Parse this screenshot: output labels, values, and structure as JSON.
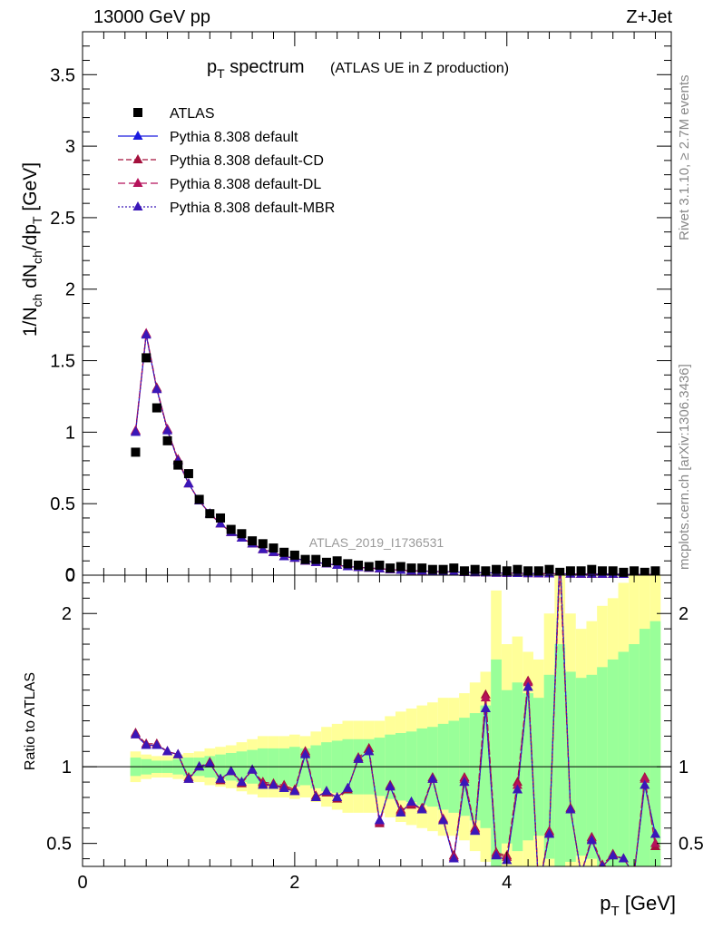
{
  "header": {
    "left": "13000 GeV pp",
    "right": "Z+Jet"
  },
  "side_labels": {
    "rivet": "Rivet 3.1.10, ≥ 2.7M events",
    "mcplots": "mcplots.cern.ch [arXiv:1306.3436]"
  },
  "chart_data": [
    {
      "type": "scatter",
      "title_main": "p",
      "title_sub": "T",
      "title_rest": " spectrum",
      "title_suffix": "(ATLAS UE in Z production)",
      "watermark": "ATLAS_2019_I1736531",
      "ylabel_parts": [
        "1/N",
        "ch",
        " dN",
        "ch",
        "/dp",
        "T",
        " [GeV]"
      ],
      "ylim": [
        0,
        3.8
      ],
      "yticks": [
        0,
        0.5,
        1,
        1.5,
        2,
        2.5,
        3,
        3.5
      ],
      "ytick_labels": [
        "0",
        "0.5",
        "1",
        "1.5",
        "2",
        "2.5",
        "3",
        "3.5"
      ],
      "x": [
        0.5,
        0.6,
        0.7,
        0.8,
        0.9,
        1.0,
        1.1,
        1.2,
        1.3,
        1.4,
        1.5,
        1.6,
        1.7,
        1.8,
        1.9,
        2.0,
        2.1,
        2.2,
        2.3,
        2.4,
        2.5,
        2.6,
        2.7,
        2.8,
        2.9,
        3.0,
        3.1,
        3.2,
        3.3,
        3.4,
        3.5,
        3.6,
        3.7,
        3.8,
        3.9,
        4.0,
        4.1,
        4.2,
        4.3,
        4.4,
        4.5,
        4.6,
        4.7,
        4.8,
        4.9,
        5.0,
        5.1,
        5.2,
        5.3,
        5.4
      ],
      "series": [
        {
          "name": "ATLAS",
          "values": [
            0.86,
            1.52,
            1.17,
            0.94,
            0.77,
            0.71,
            0.53,
            0.43,
            0.4,
            0.32,
            0.29,
            0.24,
            0.22,
            0.19,
            0.16,
            0.14,
            0.11,
            0.11,
            0.09,
            0.1,
            0.08,
            0.07,
            0.06,
            0.07,
            0.05,
            0.06,
            0.05,
            0.05,
            0.04,
            0.04,
            0.05,
            0.03,
            0.04,
            0.03,
            0.04,
            0.03,
            0.04,
            0.03,
            0.03,
            0.04,
            0.02,
            0.03,
            0.03,
            0.04,
            0.03,
            0.03,
            0.02,
            0.03,
            0.02,
            0.03
          ]
        },
        {
          "name": "Pythia 8.308 default",
          "values": [
            1.0,
            1.68,
            1.3,
            1.02,
            0.8,
            0.64,
            0.52,
            0.43,
            0.36,
            0.3,
            0.26,
            0.22,
            0.18,
            0.16,
            0.13,
            0.12,
            0.1,
            0.09,
            0.08,
            0.07,
            0.06,
            0.055,
            0.05,
            0.045,
            0.04,
            0.035,
            0.03,
            0.03,
            0.026,
            0.024,
            0.022,
            0.02,
            0.018,
            0.017,
            0.015,
            0.014,
            0.013,
            0.012,
            0.011,
            0.01,
            0.01,
            0.009,
            0.008,
            0.008,
            0.007,
            0.007,
            0.006,
            0.006,
            0.005,
            0.005
          ]
        },
        {
          "name": "Pythia 8.308 default-CD",
          "values": [
            1.01,
            1.69,
            1.31,
            1.02,
            0.81,
            0.64,
            0.52,
            0.43,
            0.36,
            0.3,
            0.26,
            0.22,
            0.18,
            0.16,
            0.13,
            0.12,
            0.1,
            0.09,
            0.08,
            0.07,
            0.06,
            0.055,
            0.05,
            0.045,
            0.04,
            0.035,
            0.03,
            0.03,
            0.026,
            0.024,
            0.022,
            0.02,
            0.018,
            0.017,
            0.015,
            0.014,
            0.013,
            0.012,
            0.011,
            0.01,
            0.01,
            0.009,
            0.008,
            0.008,
            0.007,
            0.007,
            0.006,
            0.006,
            0.005,
            0.005
          ]
        },
        {
          "name": "Pythia 8.308 default-DL",
          "values": [
            1.01,
            1.69,
            1.3,
            1.02,
            0.8,
            0.64,
            0.52,
            0.43,
            0.36,
            0.3,
            0.26,
            0.22,
            0.18,
            0.16,
            0.13,
            0.12,
            0.1,
            0.09,
            0.08,
            0.07,
            0.06,
            0.055,
            0.05,
            0.045,
            0.04,
            0.035,
            0.03,
            0.03,
            0.026,
            0.024,
            0.022,
            0.02,
            0.018,
            0.017,
            0.015,
            0.014,
            0.013,
            0.012,
            0.011,
            0.01,
            0.01,
            0.009,
            0.008,
            0.008,
            0.007,
            0.007,
            0.006,
            0.006,
            0.005,
            0.005
          ]
        },
        {
          "name": "Pythia 8.308 default-MBR",
          "values": [
            1.0,
            1.68,
            1.3,
            1.01,
            0.8,
            0.64,
            0.52,
            0.43,
            0.36,
            0.3,
            0.26,
            0.22,
            0.18,
            0.16,
            0.13,
            0.12,
            0.1,
            0.09,
            0.08,
            0.07,
            0.06,
            0.055,
            0.05,
            0.045,
            0.04,
            0.035,
            0.03,
            0.03,
            0.026,
            0.024,
            0.022,
            0.02,
            0.018,
            0.017,
            0.015,
            0.014,
            0.013,
            0.012,
            0.011,
            0.01,
            0.01,
            0.009,
            0.008,
            0.008,
            0.007,
            0.007,
            0.006,
            0.006,
            0.005,
            0.005
          ]
        }
      ],
      "legend_position": "top-left"
    },
    {
      "type": "line",
      "ylabel": "Ratio to ATLAS",
      "xlabel_main": "p",
      "xlabel_sub": "T",
      "xlabel_rest": " [GeV]",
      "xlim": [
        0,
        5.55
      ],
      "xticks": [
        0,
        2,
        4
      ],
      "xtick_labels": [
        "0",
        "2",
        "4"
      ],
      "ylim": [
        0.35,
        2.25
      ],
      "yticks": [
        0.5,
        1,
        2
      ],
      "ytick_labels": [
        "0.5",
        "1",
        "2"
      ],
      "x": [
        0.5,
        0.6,
        0.7,
        0.8,
        0.9,
        1.0,
        1.1,
        1.2,
        1.3,
        1.4,
        1.5,
        1.6,
        1.7,
        1.8,
        1.9,
        2.0,
        2.1,
        2.2,
        2.3,
        2.4,
        2.5,
        2.6,
        2.7,
        2.8,
        2.9,
        3.0,
        3.1,
        3.2,
        3.3,
        3.4,
        3.5,
        3.6,
        3.7,
        3.8,
        3.9,
        4.0,
        4.1,
        4.2,
        4.3,
        4.4,
        4.5,
        4.6,
        4.7,
        4.8,
        4.9,
        5.0,
        5.1,
        5.2,
        5.3,
        5.4
      ],
      "band_yellow_half_width": [
        0.1,
        0.08,
        0.07,
        0.07,
        0.08,
        0.09,
        0.1,
        0.12,
        0.13,
        0.14,
        0.16,
        0.18,
        0.2,
        0.2,
        0.2,
        0.21,
        0.2,
        0.23,
        0.26,
        0.28,
        0.3,
        0.3,
        0.3,
        0.3,
        0.33,
        0.36,
        0.38,
        0.4,
        0.42,
        0.45,
        0.45,
        0.48,
        0.55,
        0.62,
        1.15,
        0.8,
        0.85,
        0.75,
        0.7,
        1.0,
        1.3,
        1.0,
        0.9,
        0.95,
        1.05,
        1.1,
        1.2,
        1.3,
        1.4,
        1.5
      ],
      "band_green_half_width": [
        0.06,
        0.05,
        0.04,
        0.04,
        0.05,
        0.06,
        0.06,
        0.07,
        0.08,
        0.09,
        0.1,
        0.11,
        0.12,
        0.12,
        0.12,
        0.13,
        0.12,
        0.14,
        0.16,
        0.17,
        0.18,
        0.18,
        0.18,
        0.19,
        0.21,
        0.22,
        0.23,
        0.25,
        0.26,
        0.28,
        0.3,
        0.32,
        0.35,
        0.4,
        0.7,
        0.5,
        0.55,
        0.48,
        0.45,
        0.6,
        0.8,
        0.62,
        0.58,
        0.6,
        0.65,
        0.7,
        0.75,
        0.8,
        0.9,
        0.95
      ],
      "series": [
        {
          "name": "Pythia 8.308 default",
          "values": [
            1.21,
            1.14,
            1.14,
            1.1,
            1.08,
            0.92,
            1.0,
            1.02,
            0.92,
            0.97,
            0.9,
            0.98,
            0.88,
            0.88,
            0.86,
            0.84,
            1.08,
            0.8,
            0.84,
            0.8,
            0.86,
            1.05,
            1.1,
            0.65,
            0.87,
            0.7,
            0.77,
            0.72,
            0.92,
            0.65,
            0.4,
            0.9,
            0.58,
            1.38,
            0.42,
            0.39,
            0.85,
            1.52,
            0.2,
            0.56,
            2.4,
            0.72,
            0.3,
            0.52,
            0.35,
            0.42,
            0.4,
            0.3,
            0.88,
            0.56
          ]
        },
        {
          "name": "Pythia 8.308 default-CD",
          "values": [
            1.22,
            1.15,
            1.15,
            1.1,
            1.08,
            0.93,
            1.0,
            1.03,
            0.91,
            0.97,
            0.89,
            0.98,
            0.9,
            0.89,
            0.88,
            0.85,
            1.1,
            0.81,
            0.83,
            0.79,
            0.85,
            1.06,
            1.12,
            0.63,
            0.88,
            0.72,
            0.75,
            0.73,
            0.93,
            0.65,
            0.42,
            0.93,
            0.6,
            1.47,
            0.44,
            0.42,
            0.9,
            1.56,
            0.21,
            0.58,
            2.3,
            0.73,
            0.3,
            0.54,
            0.36,
            0.43,
            0.4,
            0.3,
            0.93,
            0.48
          ]
        },
        {
          "name": "Pythia 8.308 default-DL",
          "values": [
            1.21,
            1.14,
            1.14,
            1.1,
            1.08,
            0.92,
            1.0,
            1.02,
            0.92,
            0.97,
            0.9,
            0.98,
            0.89,
            0.88,
            0.87,
            0.84,
            1.09,
            0.8,
            0.84,
            0.8,
            0.86,
            1.05,
            1.1,
            0.64,
            0.87,
            0.71,
            0.76,
            0.72,
            0.92,
            0.66,
            0.41,
            0.92,
            0.59,
            1.45,
            0.43,
            0.41,
            0.88,
            1.55,
            0.2,
            0.57,
            2.35,
            0.72,
            0.3,
            0.53,
            0.35,
            0.42,
            0.4,
            0.3,
            0.92,
            0.5
          ]
        },
        {
          "name": "Pythia 8.308 default-MBR",
          "values": [
            1.21,
            1.14,
            1.14,
            1.1,
            1.08,
            0.92,
            1.0,
            1.02,
            0.92,
            0.97,
            0.9,
            0.98,
            0.88,
            0.88,
            0.86,
            0.84,
            1.08,
            0.8,
            0.84,
            0.8,
            0.86,
            1.05,
            1.1,
            0.65,
            0.87,
            0.7,
            0.77,
            0.72,
            0.92,
            0.65,
            0.4,
            0.9,
            0.58,
            1.38,
            0.42,
            0.39,
            0.85,
            1.52,
            0.2,
            0.56,
            2.4,
            0.72,
            0.3,
            0.52,
            0.35,
            0.42,
            0.4,
            0.3,
            0.88,
            0.56
          ]
        }
      ]
    }
  ],
  "colors": {
    "data": "#000000",
    "default": "#1a1adf",
    "cd": "#a4103c",
    "dl": "#b5125a",
    "mbr": "#3a17b8",
    "band_yellow": "#ffff99",
    "band_green": "#99ff99"
  }
}
